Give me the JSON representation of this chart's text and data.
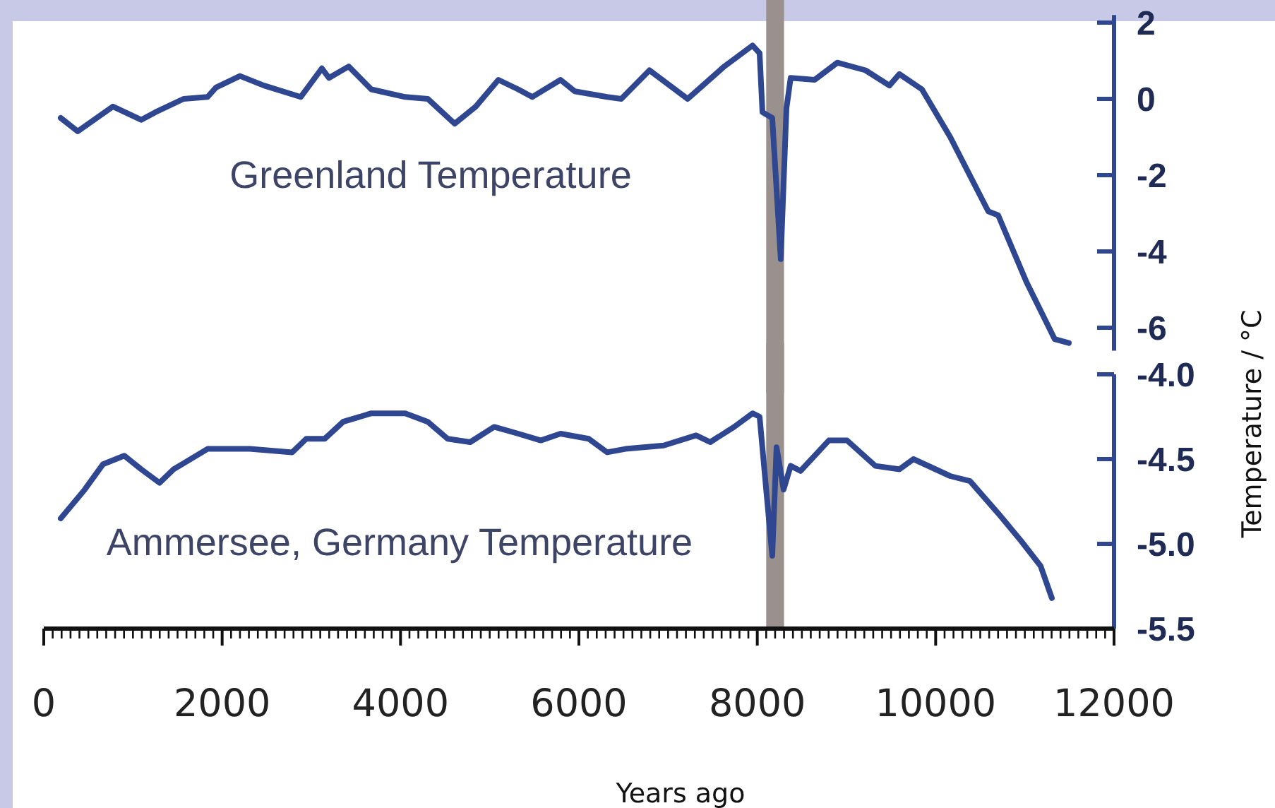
{
  "chart_data": [
    {
      "type": "line",
      "xlim": [
        0,
        12000
      ],
      "ylim": [
        -6.6,
        2.2
      ],
      "yticks": [
        2,
        0,
        -2,
        -4,
        -6
      ],
      "tick_labels": "y",
      "x": [
        190,
        380,
        776,
        1092,
        1251,
        1567,
        1836,
        1931,
        2200,
        2469,
        2881,
        3118,
        3198,
        3419,
        3672,
        4053,
        4306,
        4607,
        4844,
        5097,
        5319,
        5477,
        5794,
        5952,
        6316,
        6475,
        6791,
        7219,
        7630,
        7947,
        8026,
        8058,
        8168,
        8263,
        8327,
        8374,
        8643,
        8897,
        9213,
        9482,
        9593,
        9846,
        10163,
        10590,
        10701,
        11018,
        11335,
        11493
      ],
      "series": [
        {
          "name": "Greenland Temperature",
          "color": "#2e4790",
          "values": [
            -0.5,
            -0.85,
            -0.2,
            -0.55,
            -0.35,
            0,
            0.05,
            0.3,
            0.6,
            0.35,
            0.05,
            0.8,
            0.55,
            0.85,
            0.25,
            0.05,
            0,
            -0.65,
            -0.2,
            0.5,
            0.25,
            0.05,
            0.5,
            0.2,
            0.05,
            0,
            0.75,
            0,
            0.85,
            1.4,
            1.2,
            -0.35,
            -0.5,
            -4.2,
            -0.25,
            0.55,
            0.5,
            0.95,
            0.75,
            0.35,
            0.65,
            0.25,
            -1,
            -2.95,
            -3.05,
            -4.8,
            -6.3,
            -6.4
          ]
        }
      ],
      "bands": [
        {
          "axis": "x",
          "from": 8100,
          "to": 8300,
          "color": "#9a918e"
        }
      ]
    },
    {
      "type": "line",
      "xlim": [
        0,
        12000
      ],
      "xticks": [
        0,
        2000,
        4000,
        6000,
        8000,
        10000,
        12000
      ],
      "ylim": [
        -5.5,
        -4.0
      ],
      "yticks": [
        {
          "value": -4.0,
          "label": "-4.0"
        },
        -4.5,
        {
          "value": -5.0,
          "label": "-5.0"
        },
        -5.5
      ],
      "xlabel": "Years ago",
      "ylabel": "Temperature / °C",
      "x": [
        190,
        459,
        665,
        902,
        1092,
        1298,
        1456,
        1836,
        2042,
        2311,
        2786,
        2944,
        3150,
        3356,
        3673,
        4053,
        4306,
        4528,
        4781,
        5050,
        5319,
        5572,
        5794,
        6110,
        6316,
        6522,
        6950,
        7314,
        7472,
        7741,
        7947,
        8026,
        8105,
        8168,
        8216,
        8295,
        8374,
        8485,
        8802,
        9007,
        9324,
        9593,
        9751,
        10163,
        10385,
        10701,
        10954,
        11176,
        11303
      ],
      "series": [
        {
          "name": "Ammersee, Germany Temperature",
          "color": "#2e4790",
          "values": [
            -4.85,
            -4.68,
            -4.53,
            -4.48,
            -4.56,
            -4.64,
            -4.56,
            -4.44,
            -4.44,
            -4.44,
            -4.46,
            -4.38,
            -4.38,
            -4.28,
            -4.23,
            -4.23,
            -4.28,
            -4.38,
            -4.4,
            -4.31,
            -4.35,
            -4.39,
            -4.35,
            -4.38,
            -4.46,
            -4.44,
            -4.42,
            -4.36,
            -4.4,
            -4.31,
            -4.23,
            -4.25,
            -4.71,
            -5.07,
            -4.43,
            -4.68,
            -4.54,
            -4.57,
            -4.39,
            -4.39,
            -4.54,
            -4.56,
            -4.5,
            -4.6,
            -4.63,
            -4.82,
            -4.98,
            -5.13,
            -5.32
          ]
        }
      ],
      "bands": [
        {
          "axis": "x",
          "from": 8100,
          "to": 8300,
          "color": "#9a918e"
        }
      ]
    }
  ]
}
